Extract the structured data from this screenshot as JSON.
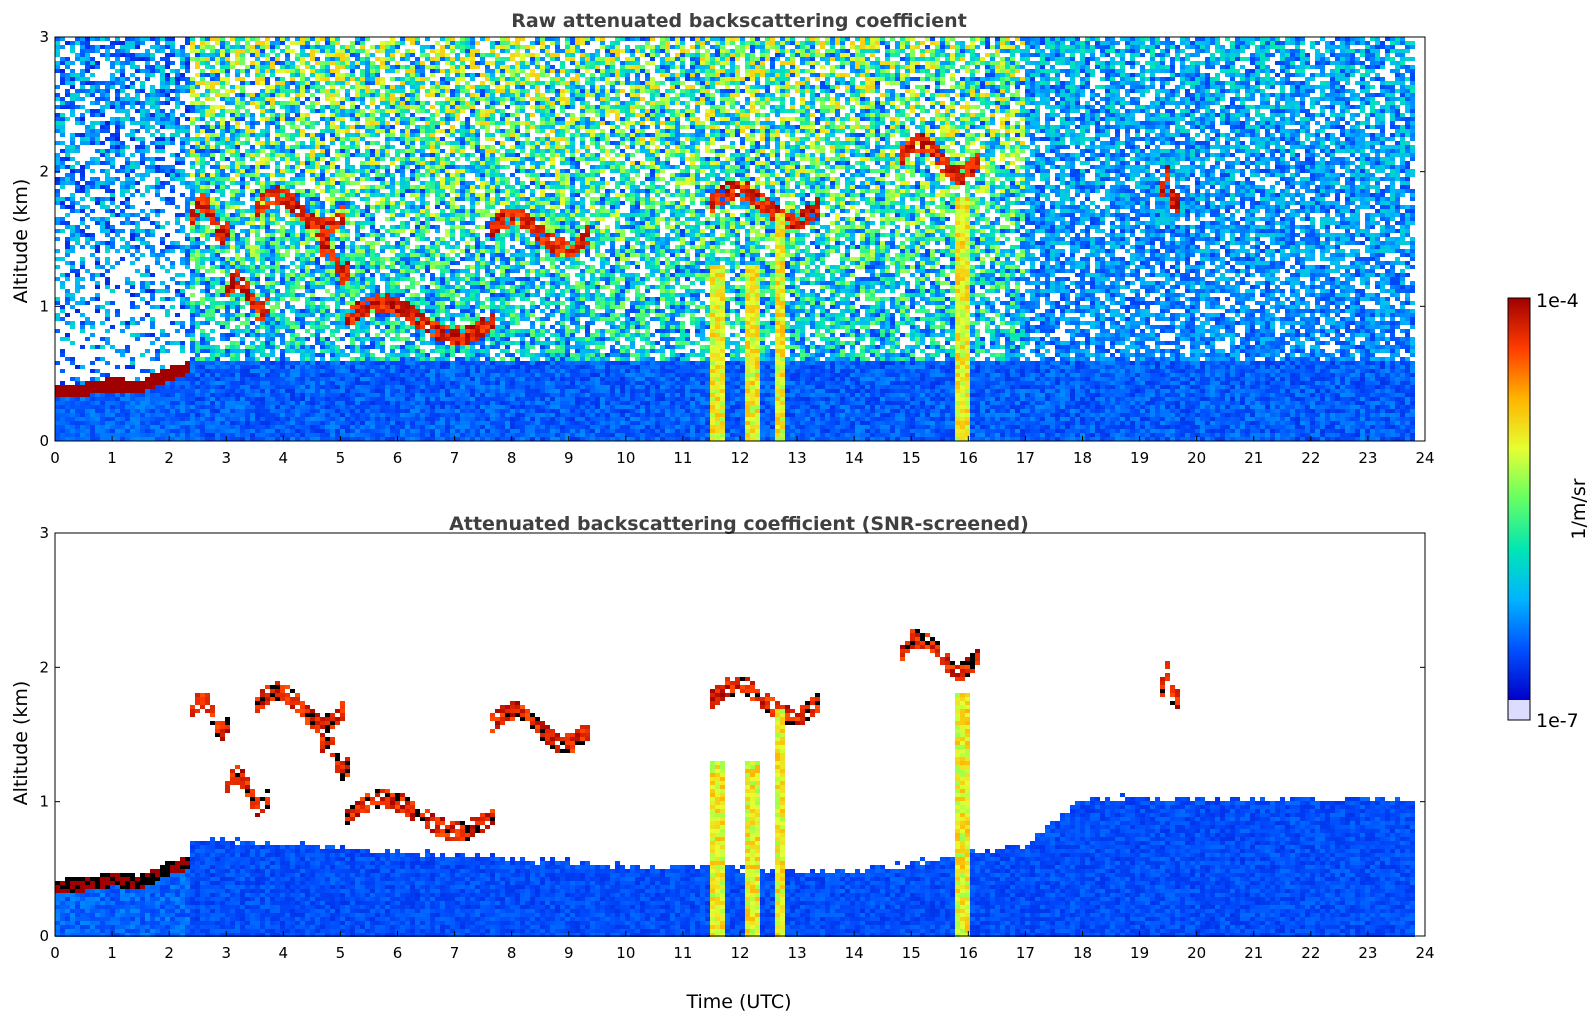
{
  "chart_data": [
    {
      "type": "heatmap",
      "title": "Raw attenuated backscattering coefficient",
      "xlabel": "",
      "ylabel": "Altitude (km)",
      "xlim": [
        0,
        24
      ],
      "ylim": [
        0,
        3
      ],
      "x_ticks": [
        "0",
        "1",
        "2",
        "3",
        "4",
        "5",
        "6",
        "7",
        "8",
        "9",
        "10",
        "11",
        "12",
        "13",
        "14",
        "15",
        "16",
        "17",
        "18",
        "19",
        "20",
        "21",
        "22",
        "23",
        "24"
      ],
      "y_ticks": [
        "0",
        "1",
        "2",
        "3"
      ],
      "color_scale": "log",
      "value_range": [
        "1e-7",
        "1e-4"
      ],
      "features": {
        "boundary_layer_top_km": [
          {
            "t": 0,
            "z": 0.37
          },
          {
            "t": 0.5,
            "z": 0.38
          },
          {
            "t": 1,
            "z": 0.42
          },
          {
            "t": 1.5,
            "z": 0.4
          },
          {
            "t": 2,
            "z": 0.5
          },
          {
            "t": 2.4,
            "z": 0.55
          }
        ],
        "cloud_layers": [
          {
            "t_start": 2.4,
            "t_end": 3.1,
            "z": 1.65
          },
          {
            "t_start": 3.5,
            "t_end": 5.1,
            "z": 1.7
          },
          {
            "t_start": 3.0,
            "t_end": 3.8,
            "z": 1.08
          },
          {
            "t_start": 4.6,
            "t_end": 5.2,
            "z": 1.35
          },
          {
            "t_start": 5.1,
            "t_end": 7.7,
            "z": 0.9
          },
          {
            "t_start": 7.6,
            "t_end": 9.4,
            "z": 1.55
          },
          {
            "t_start": 11.5,
            "t_end": 13.4,
            "z": 1.75
          },
          {
            "t_start": 14.8,
            "t_end": 16.2,
            "z": 2.1
          },
          {
            "t_start": 19.4,
            "t_end": 19.7,
            "z": 1.85
          }
        ],
        "precipitation_shafts": [
          {
            "t": 11.6,
            "top_km": 1.3
          },
          {
            "t": 12.2,
            "top_km": 1.3
          },
          {
            "t": 12.7,
            "top_km": 1.7
          },
          {
            "t": 15.9,
            "top_km": 1.8
          }
        ]
      }
    },
    {
      "type": "heatmap",
      "title": "Attenuated backscattering coefficient (SNR-screened)",
      "xlabel": "Time (UTC)",
      "ylabel": "Altitude (km)",
      "xlim": [
        0,
        24
      ],
      "ylim": [
        0,
        3
      ],
      "x_ticks": [
        "0",
        "1",
        "2",
        "3",
        "4",
        "5",
        "6",
        "7",
        "8",
        "9",
        "10",
        "11",
        "12",
        "13",
        "14",
        "15",
        "16",
        "17",
        "18",
        "19",
        "20",
        "21",
        "22",
        "23",
        "24"
      ],
      "y_ticks": [
        "0",
        "1",
        "2",
        "3"
      ],
      "color_scale": "log",
      "value_range": [
        "1e-7",
        "1e-4"
      ],
      "features": {
        "screened_signal_top_km": [
          {
            "t": 2.4,
            "z": 0.75
          },
          {
            "t": 8,
            "z": 0.6
          },
          {
            "t": 10,
            "z": 0.55
          },
          {
            "t": 14,
            "z": 0.5
          },
          {
            "t": 17,
            "z": 0.7
          },
          {
            "t": 18,
            "z": 1.05
          },
          {
            "t": 23.8,
            "z": 1.05
          }
        ]
      }
    }
  ],
  "colorbar": {
    "label": "1/m/sr",
    "max_label": "1e-4",
    "min_label": "1e-7",
    "colors": [
      "#0000c8",
      "#0050ff",
      "#00b4ff",
      "#00e6b4",
      "#64ff64",
      "#e6ff32",
      "#ffb400",
      "#ff3c00",
      "#a00000"
    ]
  }
}
